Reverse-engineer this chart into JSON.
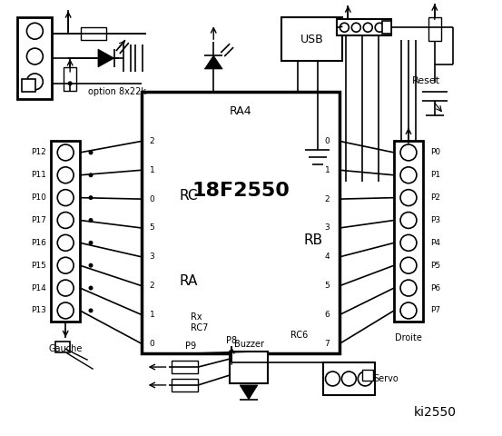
{
  "bg_color": "#ffffff",
  "title": "ki2550",
  "chip_label": "18F2550",
  "chip_sublabel": "RA4",
  "left_pins": [
    "P12",
    "P11",
    "P10",
    "P17",
    "P16",
    "P15",
    "P14",
    "P13"
  ],
  "right_pins": [
    "P0",
    "P1",
    "P2",
    "P3",
    "P4",
    "P5",
    "P6",
    "P7"
  ],
  "rc_pins": [
    "2",
    "1",
    "0",
    "5",
    "3",
    "2",
    "1",
    "0"
  ],
  "rb_pins": [
    "0",
    "1",
    "2",
    "3",
    "4",
    "5",
    "6",
    "7"
  ],
  "rc_label": "RC",
  "ra_label": "RA",
  "rb_label": "RB",
  "usb_label": "USB",
  "reset_label": "Reset",
  "option_label": "option 8x22k",
  "rx_label": "Rx",
  "rc7_label": "RC7",
  "rc6_label": "RC6",
  "buzzer_label": "Buzzer",
  "p9_label": "P9",
  "p8_label": "P8",
  "servo_label": "Servo",
  "gauche_label": "Gauche",
  "droite_label": "Droite"
}
